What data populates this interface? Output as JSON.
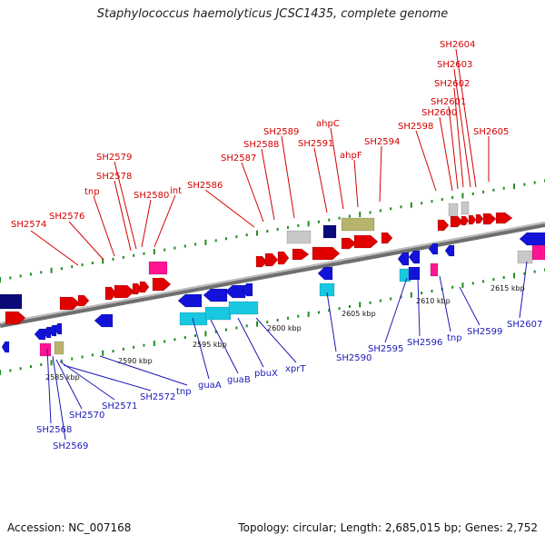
{
  "title": "Staphylococcus haemolyticus JCSC1435, complete genome",
  "footer": {
    "accession": "Accession: NC_007168",
    "summary": "Topology: circular; Length: 2,685,015 bp; Genes: 2,752"
  },
  "colors": {
    "forward": "#e00000",
    "reverse": "#1212d8",
    "pink": "#ff1493",
    "cyan": "#18c8e0",
    "olive": "#b8b46c",
    "navy": "#0a0a7a",
    "gray": "#c8c8c8",
    "backbone": "#888888",
    "tick": "#228b22",
    "label_red": "#d40000",
    "label_blue": "#1a1ab8"
  },
  "scale_labels": [
    "2585 kbp",
    "2590 kbp",
    "2595 kbp",
    "2600 kbp",
    "2605 kbp",
    "2610 kbp",
    "2615 kbp"
  ],
  "top_labels": [
    "SH2574",
    "SH2576",
    "tnp",
    "SH2578",
    "SH2579",
    "SH2580",
    "int",
    "SH2586",
    "SH2587",
    "SH2588",
    "SH2589",
    "SH2591",
    "ahpC",
    "ahpF",
    "SH2594",
    "SH2598",
    "SH2600",
    "SH2601",
    "SH2602",
    "SH2603",
    "SH2604",
    "SH2605"
  ],
  "bottom_labels": [
    "SH2568",
    "SH2569",
    "SH2570",
    "SH2571",
    "SH2572",
    "tnp",
    "guaA",
    "guaB",
    "pbuX",
    "xprT",
    "SH2590",
    "SH2595",
    "SH2596",
    "tnp",
    "SH2599",
    "SH2607"
  ]
}
